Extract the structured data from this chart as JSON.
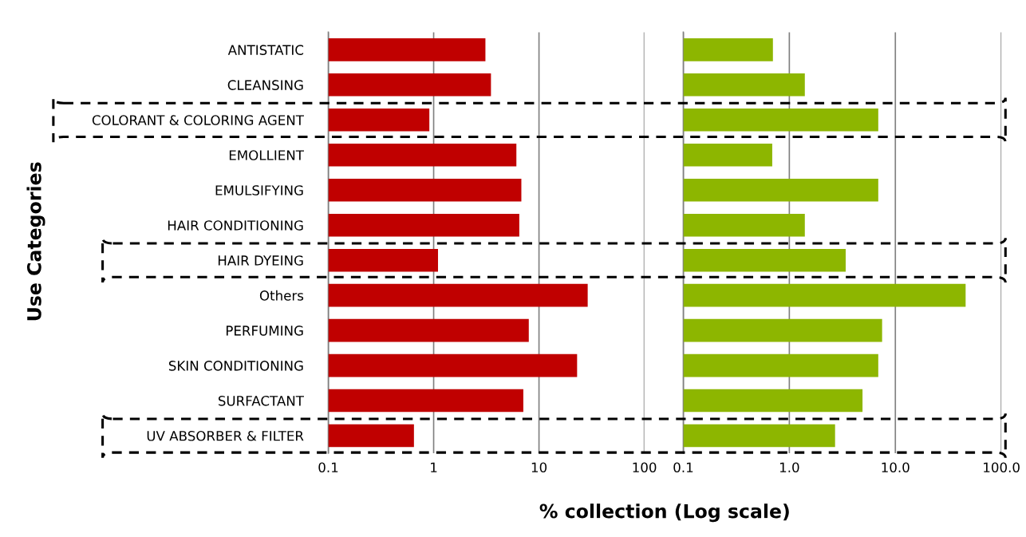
{
  "chart_data": [
    {
      "type": "bar",
      "orientation": "horizontal",
      "log": "x",
      "grid": "x",
      "ylabel": "Use Categories",
      "xlabel": "% collection (Log scale)",
      "categories": [
        "ANTISTATIC",
        "CLEANSING",
        "COLORANT & COLORING AGENT",
        "EMOLLIENT",
        "EMULSIFYING",
        "HAIR CONDITIONING",
        "HAIR DYEING",
        "Others",
        "PERFUMING",
        "SKIN CONDITIONING",
        "SURFACTANT",
        "UV ABSORBER & FILTER"
      ],
      "series": [
        {
          "color": "#c00000",
          "values": [
            3.1,
            3.5,
            0.91,
            6.1,
            6.8,
            6.5,
            1.1,
            29,
            8.0,
            23,
            7.1,
            0.65
          ]
        }
      ],
      "xlim": [
        0.1,
        100
      ],
      "xticks": [
        0.1,
        1,
        10,
        100
      ]
    },
    {
      "type": "bar",
      "orientation": "horizontal",
      "log": "x",
      "grid": "x",
      "categories": [
        null,
        null,
        null,
        null,
        null,
        null,
        null,
        null,
        null,
        null,
        null,
        null
      ],
      "series": [
        {
          "color": "#8db600",
          "values": [
            0.7,
            1.4,
            6.9,
            0.69,
            6.9,
            1.4,
            3.4,
            46,
            7.5,
            6.9,
            4.9,
            2.7
          ]
        }
      ],
      "xlim": [
        0.1,
        100
      ],
      "xticks": [
        0.1,
        {
          "value": 1,
          "label": "1.0"
        },
        {
          "value": 10,
          "label": "10.0"
        },
        {
          "value": 100,
          "label": "100.0"
        }
      ]
    }
  ]
}
